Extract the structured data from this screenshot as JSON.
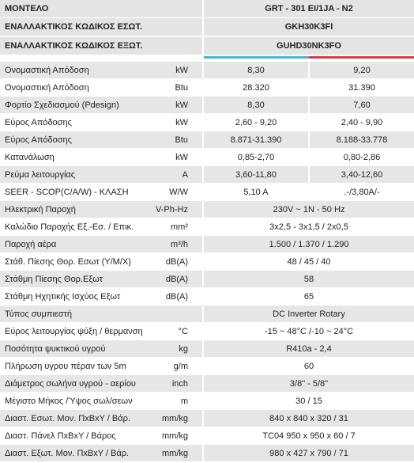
{
  "header": [
    {
      "label": "ΜΟΝΤΕΛΟ",
      "value": "GRT - 301 EI/1JA - N2"
    },
    {
      "label": "ΕΝΑΛΛΑΚΤΙΚΟΣ ΚΩΔΙΚΟΣ ΕΣΩΤ.",
      "value": "GKH30K3FI"
    },
    {
      "label": "ΕΝΑΛΛΑΚΤΙΚΟΣ ΚΩΔΙΚΟΣ ΕΞΩΤ.",
      "value": "GUHD30NK3FO"
    }
  ],
  "rows": [
    {
      "label": "Ονομαστική Απόδοση",
      "unit": "kW",
      "values": [
        "8,30",
        "9,20"
      ]
    },
    {
      "label": "Ονομαστική Απόδοση",
      "unit": "Btu",
      "values": [
        "28.320",
        "31.390"
      ]
    },
    {
      "label": "Φορτίο Σχεδιασμού (Pdesign)",
      "unit": "kW",
      "values": [
        "8,30",
        "7,60"
      ]
    },
    {
      "label": "Εύρος Απόδοσης",
      "unit": "kW",
      "values": [
        "2,60 - 9,20",
        "2,40 - 9,90"
      ]
    },
    {
      "label": "Εύρος Απόδοσης",
      "unit": "Btu",
      "values": [
        "8.871-31.390",
        "8.188-33.778"
      ]
    },
    {
      "label": "Κατανάλωση",
      "unit": "kW",
      "values": [
        "0,85-2,70",
        "0,80-2,86"
      ]
    },
    {
      "label": "Ρεύμα λειτουργίας",
      "unit": "A",
      "values": [
        "3,60-11,80",
        "3,40-12,60"
      ]
    },
    {
      "label": "SEER - SCOP(C/A/W) - ΚΛΑΣΗ",
      "unit": "W/W",
      "values": [
        "5,10 A",
        ".-/3,80A/-"
      ]
    },
    {
      "label": "Ηλεκτρική Παροχή",
      "unit": "V-Ph-Hz",
      "values": [
        "230V ~ 1N - 50 Hz"
      ]
    },
    {
      "label": "Καλώδιο Παροχής Εξ.-Εσ. / Επικ.",
      "unit": "mm²",
      "values": [
        "3x2,5 - 3x1,5 / 2x0,5"
      ]
    },
    {
      "label": "Παροχή αέρα",
      "unit": "m³/h",
      "values": [
        "1.500 / 1.370 / 1.290"
      ]
    },
    {
      "label": "Στάθ. Πίεσης Θορ. Εσωτ (Υ/Μ/Χ)",
      "unit": "dB(A)",
      "values": [
        "48 / 45 / 40"
      ]
    },
    {
      "label": "Στάθμη Πίεσης Θορ.Εξωτ",
      "unit": "dB(A)",
      "values": [
        "58"
      ]
    },
    {
      "label": "Στάθμη Ηχητικής Ισχύος Εξωτ",
      "unit": "dB(A)",
      "values": [
        "65"
      ]
    },
    {
      "label": "Τύπος συμπιεστή",
      "values": [
        "DC Inverter Rotary"
      ]
    },
    {
      "label": "Εύρος λειτουργίας ψύξη / θερμανση",
      "unit": "°C",
      "values": [
        "-15 ~ 48°C /-10 ~ 24°C"
      ]
    },
    {
      "label": "Ποσότητα ψυκτικού υγρού",
      "unit": "kg",
      "values": [
        "R410a - 2,4"
      ]
    },
    {
      "label": "Πλήρωση υγρου πέραν των 5m",
      "unit": "g/m",
      "values": [
        "60"
      ]
    },
    {
      "label": "Διάμετρος σωλήνα υγρού - αερίου",
      "unit": "inch",
      "values": [
        "3/8\" - 5/8\""
      ]
    },
    {
      "label": "Μέγιστο Μήκος /Ύψος σωλ/σεων",
      "unit": "m",
      "values": [
        "30 / 15"
      ]
    },
    {
      "label": "Διαστ. Εσωτ. Μον. ΠxΒxΥ / Βάρ.",
      "unit": "mm/kg",
      "values": [
        "840 x 840 x 320 / 31"
      ]
    },
    {
      "label": "Διαστ. Πάνελ ΠxΒxΥ / Βάρος",
      "unit": "mm/kg",
      "values": [
        "TC04 950 x 950 x 60 / 7"
      ]
    },
    {
      "label": "Διαστ. Εξωτ. Μον. ΠxΒxΥ / Βάρ.",
      "unit": "mm/kg",
      "values": [
        "980 x 427 x 790 / 71"
      ]
    }
  ]
}
